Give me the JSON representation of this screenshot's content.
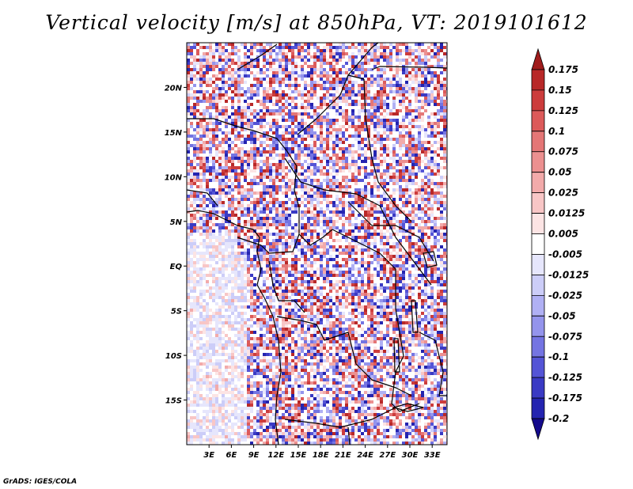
{
  "title": "Vertical velocity [m/s] at 850hPa, VT: 2019101612",
  "credit": "GrADS: IGES/COLA",
  "map": {
    "variable": "Vertical velocity",
    "units": "m/s",
    "level": "850hPa",
    "valid_time": "2019101612",
    "lon_range": [
      0,
      35
    ],
    "lat_range": [
      -20,
      25
    ],
    "lat_ticks": [
      {
        "value": 20,
        "label": "20N"
      },
      {
        "value": 15,
        "label": "15N"
      },
      {
        "value": 10,
        "label": "10N"
      },
      {
        "value": 5,
        "label": "5N"
      },
      {
        "value": 0,
        "label": "EQ"
      },
      {
        "value": -5,
        "label": "5S"
      },
      {
        "value": -10,
        "label": "10S"
      },
      {
        "value": -15,
        "label": "15S"
      }
    ],
    "lon_ticks": [
      {
        "value": 3,
        "label": "3E"
      },
      {
        "value": 6,
        "label": "6E"
      },
      {
        "value": 9,
        "label": "9E"
      },
      {
        "value": 12,
        "label": "12E"
      },
      {
        "value": 15,
        "label": "15E"
      },
      {
        "value": 18,
        "label": "18E"
      },
      {
        "value": 21,
        "label": "21E"
      },
      {
        "value": 24,
        "label": "24E"
      },
      {
        "value": 27,
        "label": "27E"
      },
      {
        "value": 30,
        "label": "30E"
      },
      {
        "value": 33,
        "label": "33E"
      }
    ]
  },
  "colorbar": {
    "labels": [
      "0.175",
      "0.15",
      "0.125",
      "0.1",
      "0.075",
      "0.05",
      "0.025",
      "0.0125",
      "0.005",
      "-0.005",
      "-0.0125",
      "-0.025",
      "-0.05",
      "-0.075",
      "-0.1",
      "-0.125",
      "-0.175",
      "-0.2"
    ],
    "colors": [
      "#a01c1c",
      "#b82828",
      "#cc3c3c",
      "#dc5a5a",
      "#e47676",
      "#ec9090",
      "#f2aaaa",
      "#f8c6c6",
      "#fce4e4",
      "#ffffff",
      "#e6e6fc",
      "#cccdf8",
      "#b0b0f4",
      "#9494ec",
      "#7474e2",
      "#5454d6",
      "#3a3ac4",
      "#2424b0",
      "#140a8c"
    ]
  }
}
